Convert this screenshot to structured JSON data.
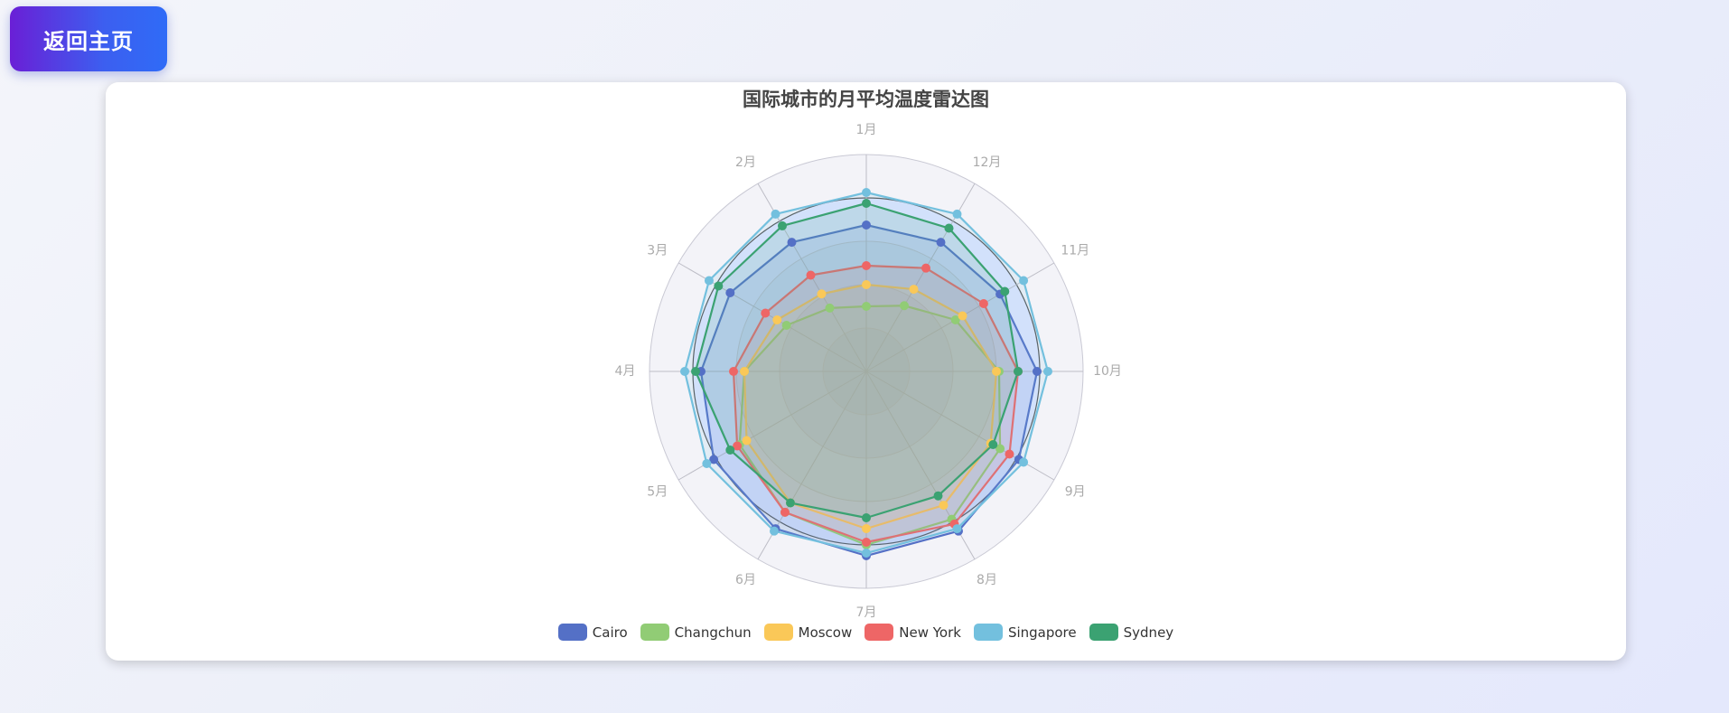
{
  "header": {
    "back_label": "返回主页"
  },
  "chart_data": {
    "type": "radar",
    "title": "国际城市的月平均温度雷达图",
    "indicators": [
      "1月",
      "12月",
      "11月",
      "10月",
      "9月",
      "8月",
      "7月",
      "6月",
      "5月",
      "4月",
      "3月",
      "2月"
    ],
    "max": 40,
    "split_number": 5,
    "series": [
      {
        "name": "Cairo",
        "color": "#5470c6",
        "values": [
          14,
          15,
          17,
          23,
          25,
          28,
          28,
          27,
          25,
          21,
          18,
          15
        ]
      },
      {
        "name": "Changchun",
        "color": "#91cc75",
        "values": [
          -16,
          -12,
          -2,
          9,
          17,
          23,
          24,
          20,
          14,
          5,
          -6,
          -13
        ]
      },
      {
        "name": "Moscow",
        "color": "#fac858",
        "values": [
          -8,
          -5,
          1,
          8,
          13,
          17,
          18,
          16,
          11,
          5,
          -2,
          -7
        ]
      },
      {
        "name": "New York",
        "color": "#ee6666",
        "values": [
          -1,
          4,
          10,
          16,
          21,
          25,
          23,
          20,
          15,
          9,
          3,
          1
        ]
      },
      {
        "name": "Singapore",
        "color": "#73c0de",
        "values": [
          26,
          27,
          27,
          27,
          27,
          27,
          27,
          28,
          28,
          27,
          27,
          27
        ]
      },
      {
        "name": "Sydney",
        "color": "#3ba272",
        "values": [
          22,
          21,
          19,
          16,
          14,
          13,
          14,
          16,
          18,
          23,
          23,
          22
        ]
      }
    ]
  }
}
